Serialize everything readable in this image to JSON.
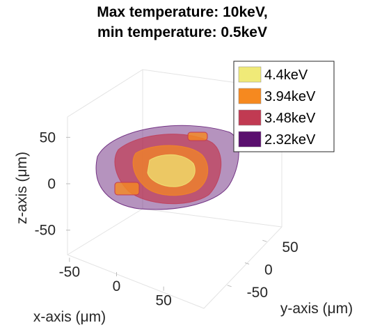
{
  "chart_data": {
    "type": "isosurface",
    "title": [
      "Max temperature: 10keV,",
      "min temperature: 0.5keV"
    ],
    "xlabel": "x-axis (μm)",
    "ylabel": "y-axis (μm)",
    "zlabel": "z-axis (μm)",
    "xlim": [
      -75,
      75
    ],
    "ylim": [
      -75,
      75
    ],
    "zlim": [
      -75,
      75
    ],
    "xticks": [
      -50,
      0,
      50
    ],
    "yticks": [
      -50,
      0,
      50
    ],
    "zticks": [
      -50,
      0,
      50
    ],
    "grid": true,
    "legend": "upper right",
    "series": [
      {
        "name": "4.4keV",
        "color": "#f0ea78"
      },
      {
        "name": "3.94keV",
        "color": "#f6891f"
      },
      {
        "name": "3.48keV",
        "color": "#c13a52"
      },
      {
        "name": "2.32keV",
        "color": "#5a0f6e"
      }
    ]
  }
}
